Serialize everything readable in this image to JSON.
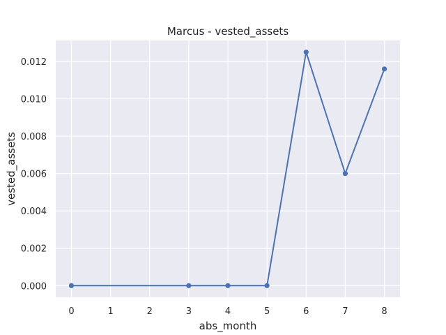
{
  "chart_data": {
    "type": "line",
    "title": "Marcus - vested_assets",
    "xlabel": "abs_month",
    "ylabel": "vested_assets",
    "x_ticks": [
      0,
      1,
      2,
      3,
      4,
      5,
      6,
      7,
      8
    ],
    "y_ticks": [
      "0.000",
      "0.002",
      "0.004",
      "0.006",
      "0.008",
      "0.010",
      "0.012"
    ],
    "xlim": [
      -0.4,
      8.4
    ],
    "ylim": [
      -0.000625,
      0.013125
    ],
    "grid": true,
    "series": [
      {
        "color": "#4c72b0",
        "x": [
          0,
          3,
          4,
          5,
          6,
          7,
          8
        ],
        "y": [
          0.0,
          0.0,
          0.0,
          0.0,
          0.0125,
          0.006,
          0.0116
        ]
      }
    ]
  }
}
